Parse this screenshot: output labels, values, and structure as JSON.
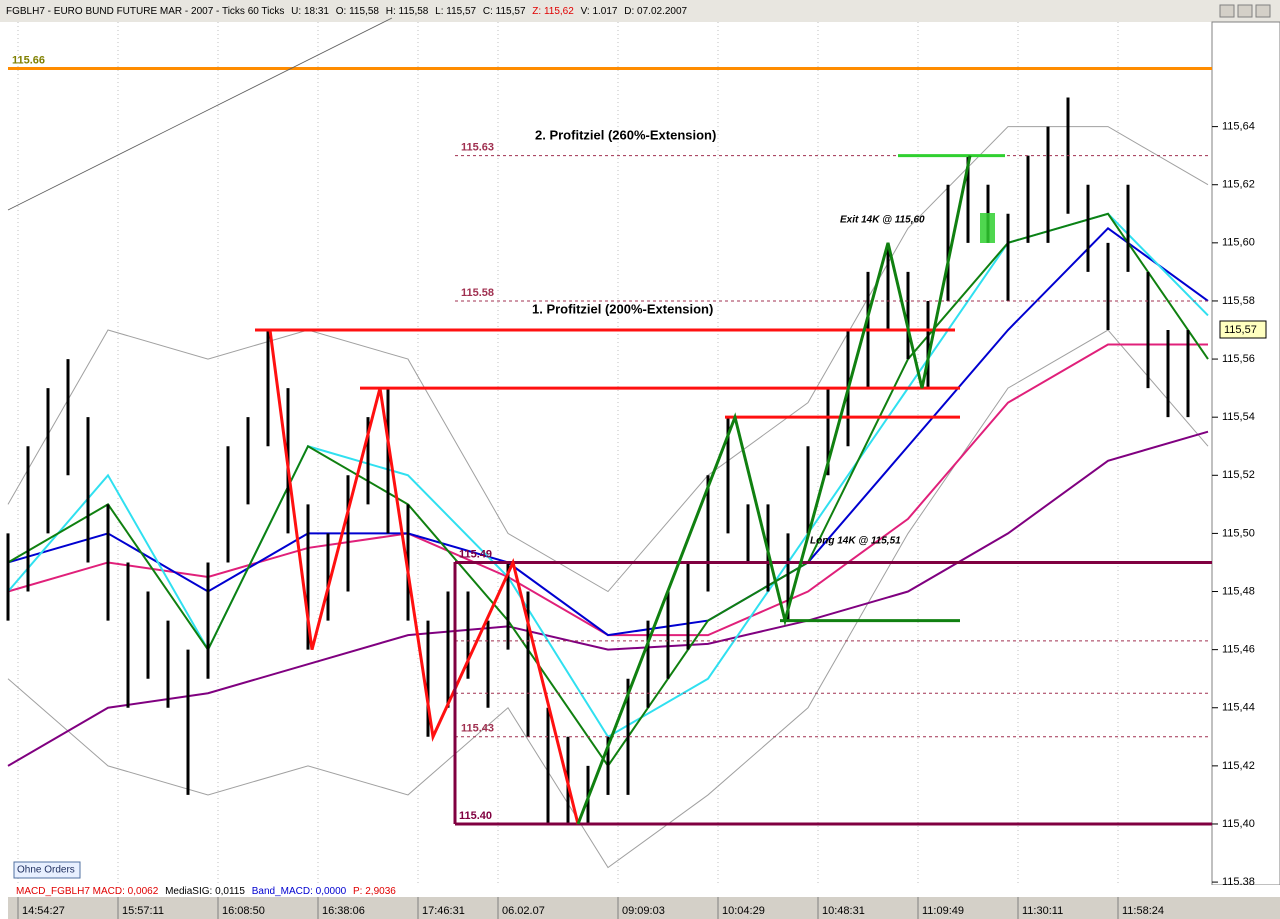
{
  "header": {
    "instrument": "FGBLH7 - EURO BUND FUTURE  MAR - 2007 - Ticks 60 Ticks",
    "u": "U: 18:31",
    "o": "O: 115,58",
    "h": "H: 115,58",
    "l": "L: 115,57",
    "c": "C: 115,57",
    "z": "Z: 115,62",
    "v": "V: 1.017",
    "d": "D: 07.02.2007"
  },
  "annotations": {
    "target2": "2. Profitziel (260%-Extension)",
    "target1": "1. Profitziel (200%-Extension)",
    "exit": "Exit 14K @ 115,60",
    "long": "Long 14K @ 115,51"
  },
  "price_tag": "115,57",
  "button": "Ohne Orders",
  "indicator": {
    "macd": "MACD_FGBLH7  MACD: 0,0062",
    "signal": "MediaSIG: 0,0115",
    "band": "Band_MACD: 0,0000",
    "p": "P: 2,9036"
  },
  "chart_data": {
    "type": "hilo",
    "color": "#000000",
    "xlim": [
      0,
      120.4
    ],
    "ylim": [
      115.379,
      115.676
    ],
    "yticks": [
      {
        "value": 115.38,
        "label": "115,38"
      },
      {
        "value": 115.4,
        "label": "115,40"
      },
      {
        "value": 115.42,
        "label": "115,42"
      },
      {
        "value": 115.44,
        "label": "115,44"
      },
      {
        "value": 115.46,
        "label": "115,46"
      },
      {
        "value": 115.48,
        "label": "115,48"
      },
      {
        "value": 115.5,
        "label": "115,50"
      },
      {
        "value": 115.52,
        "label": "115,52"
      },
      {
        "value": 115.54,
        "label": "115,54"
      },
      {
        "value": 115.56,
        "label": "115,56"
      },
      {
        "value": 115.58,
        "label": "115,58"
      },
      {
        "value": 115.6,
        "label": "115,60"
      },
      {
        "value": 115.62,
        "label": "115,62"
      },
      {
        "value": 115.64,
        "label": "115,64"
      }
    ],
    "xticks": [
      {
        "value": 1,
        "label": "14:54:27"
      },
      {
        "value": 11,
        "label": "15:57:11"
      },
      {
        "value": 21,
        "label": "16:08:50"
      },
      {
        "value": 31,
        "label": "16:38:06"
      },
      {
        "value": 41,
        "label": "17:46:31"
      },
      {
        "value": 49,
        "label": "06.02.07"
      },
      {
        "value": 61,
        "label": "09:09:03"
      },
      {
        "value": 71,
        "label": "10:04:29"
      },
      {
        "value": 81,
        "label": "10:48:31"
      },
      {
        "value": 91,
        "label": "11:09:49"
      },
      {
        "value": 101,
        "label": "11:30:11"
      },
      {
        "value": 111,
        "label": "11:58:24"
      }
    ],
    "x": [
      0,
      2,
      4,
      6,
      8,
      10,
      12,
      14,
      16,
      18,
      20,
      22,
      24,
      26,
      28,
      30,
      32,
      34,
      36,
      38,
      40,
      42,
      44,
      46,
      48,
      50,
      52,
      54,
      56,
      58,
      60,
      62,
      64,
      66,
      68,
      70,
      72,
      74,
      76,
      78,
      80,
      82,
      84,
      86,
      88,
      90,
      92,
      94,
      96,
      98,
      100,
      102,
      104,
      106,
      108,
      110,
      112,
      114,
      116,
      118
    ],
    "low": [
      115.47,
      115.48,
      115.5,
      115.52,
      115.49,
      115.47,
      115.44,
      115.45,
      115.44,
      115.41,
      115.45,
      115.49,
      115.51,
      115.53,
      115.5,
      115.46,
      115.47,
      115.48,
      115.51,
      115.5,
      115.47,
      115.43,
      115.44,
      115.45,
      115.44,
      115.46,
      115.43,
      115.4,
      115.4,
      115.4,
      115.41,
      115.41,
      115.44,
      115.45,
      115.46,
      115.48,
      115.5,
      115.49,
      115.48,
      115.47,
      115.5,
      115.52,
      115.53,
      115.55,
      115.57,
      115.56,
      115.55,
      115.58,
      115.6,
      115.6,
      115.58,
      115.6,
      115.6,
      115.61,
      115.59,
      115.57,
      115.59,
      115.55,
      115.54,
      115.54
    ],
    "high": [
      115.5,
      115.53,
      115.55,
      115.56,
      115.54,
      115.51,
      115.49,
      115.48,
      115.47,
      115.46,
      115.49,
      115.53,
      115.54,
      115.57,
      115.55,
      115.51,
      115.5,
      115.52,
      115.54,
      115.55,
      115.51,
      115.47,
      115.48,
      115.48,
      115.47,
      115.49,
      115.48,
      115.44,
      115.43,
      115.42,
      115.43,
      115.45,
      115.47,
      115.48,
      115.49,
      115.52,
      115.54,
      115.51,
      115.51,
      115.5,
      115.53,
      115.55,
      115.57,
      115.59,
      115.6,
      115.59,
      115.58,
      115.62,
      115.63,
      115.62,
      115.61,
      115.63,
      115.64,
      115.65,
      115.62,
      115.6,
      115.62,
      115.59,
      115.57,
      115.57
    ],
    "ma_x": [
      0,
      10,
      20,
      30,
      40,
      50,
      60,
      70,
      80,
      90,
      100,
      110,
      120
    ],
    "lines": [
      {
        "color": "#a0a0a0",
        "values": [
          115.51,
          115.57,
          115.56,
          115.57,
          115.56,
          115.5,
          115.48,
          115.52,
          115.545,
          115.605,
          115.64,
          115.64,
          115.62
        ]
      },
      {
        "color": "#a0a0a0",
        "values": [
          115.45,
          115.42,
          115.41,
          115.42,
          115.41,
          115.44,
          115.385,
          115.41,
          115.44,
          115.5,
          115.55,
          115.57,
          115.53
        ]
      },
      {
        "color": "#800080",
        "values": [
          115.42,
          115.44,
          115.445,
          115.455,
          115.465,
          115.468,
          115.46,
          115.462,
          115.47,
          115.48,
          115.5,
          115.525,
          115.535
        ]
      },
      {
        "color": "#e0207a",
        "values": [
          115.48,
          115.49,
          115.485,
          115.495,
          115.5,
          115.485,
          115.465,
          115.465,
          115.48,
          115.505,
          115.545,
          115.565,
          115.565
        ]
      },
      {
        "color": "#0000d0",
        "values": [
          115.49,
          115.5,
          115.48,
          115.5,
          115.5,
          115.49,
          115.465,
          115.47,
          115.49,
          115.53,
          115.57,
          115.605,
          115.58
        ]
      },
      {
        "color": "#30e0f0",
        "values": [
          115.48,
          115.52,
          115.46,
          115.53,
          115.52,
          115.485,
          115.43,
          115.45,
          115.5,
          115.55,
          115.6,
          115.61,
          115.575
        ]
      },
      {
        "color": "#108010",
        "values": [
          115.49,
          115.51,
          115.46,
          115.53,
          115.51,
          115.47,
          115.42,
          115.47,
          115.49,
          115.56,
          115.6,
          115.61,
          115.56
        ]
      }
    ],
    "levels": [
      {
        "value": 115.66,
        "label": "115.66",
        "color": "#ff8c00",
        "from": 0,
        "to": 120.4
      },
      {
        "value": 115.57,
        "color": "#ff1010",
        "from": 24.7,
        "to": 94.7
      },
      {
        "value": 115.55,
        "color": "#ff1010",
        "from": 35.2,
        "to": 95.2
      },
      {
        "value": 115.54,
        "color": "#ff1010",
        "from": 71.7,
        "to": 95.2
      },
      {
        "value": 115.49,
        "label": "115.49",
        "color": "#800040",
        "from": 44.7,
        "to": 120.4
      },
      {
        "value": 115.4,
        "label": "115.40",
        "color": "#800040",
        "from": 44.7,
        "to": 120.4
      },
      {
        "value": 115.47,
        "color": "#108010",
        "from": 77.2,
        "to": 95.2
      },
      {
        "value": 115.63,
        "color": "#30d030",
        "from": 89,
        "to": 99.7
      }
    ],
    "dashed_levels": [
      {
        "value": 115.63,
        "label": "115.63",
        "color": "#a03050",
        "from": 44.7,
        "to": 120
      },
      {
        "value": 115.58,
        "label": "115.58",
        "color": "#a03050",
        "from": 44.7,
        "to": 120
      },
      {
        "value": 115.463,
        "color": "#a03050",
        "from": 44.7,
        "to": 120
      },
      {
        "value": 115.445,
        "color": "#a03050",
        "from": 44.7,
        "to": 120
      },
      {
        "value": 115.43,
        "label": "115.43",
        "color": "#a03050",
        "from": 44.7,
        "to": 120
      }
    ],
    "zigzags": [
      {
        "color": "#ff1010",
        "x": [
          26.2,
          30.4,
          37.2,
          42.5,
          50.5,
          57
        ],
        "values": [
          115.57,
          115.46,
          115.55,
          115.43,
          115.49,
          115.4
        ]
      },
      {
        "color": "#108010",
        "x": [
          57,
          72.7,
          77.7,
          88,
          91.4,
          96.2
        ],
        "values": [
          115.4,
          115.54,
          115.47,
          115.6,
          115.55,
          115.63
        ]
      }
    ]
  }
}
